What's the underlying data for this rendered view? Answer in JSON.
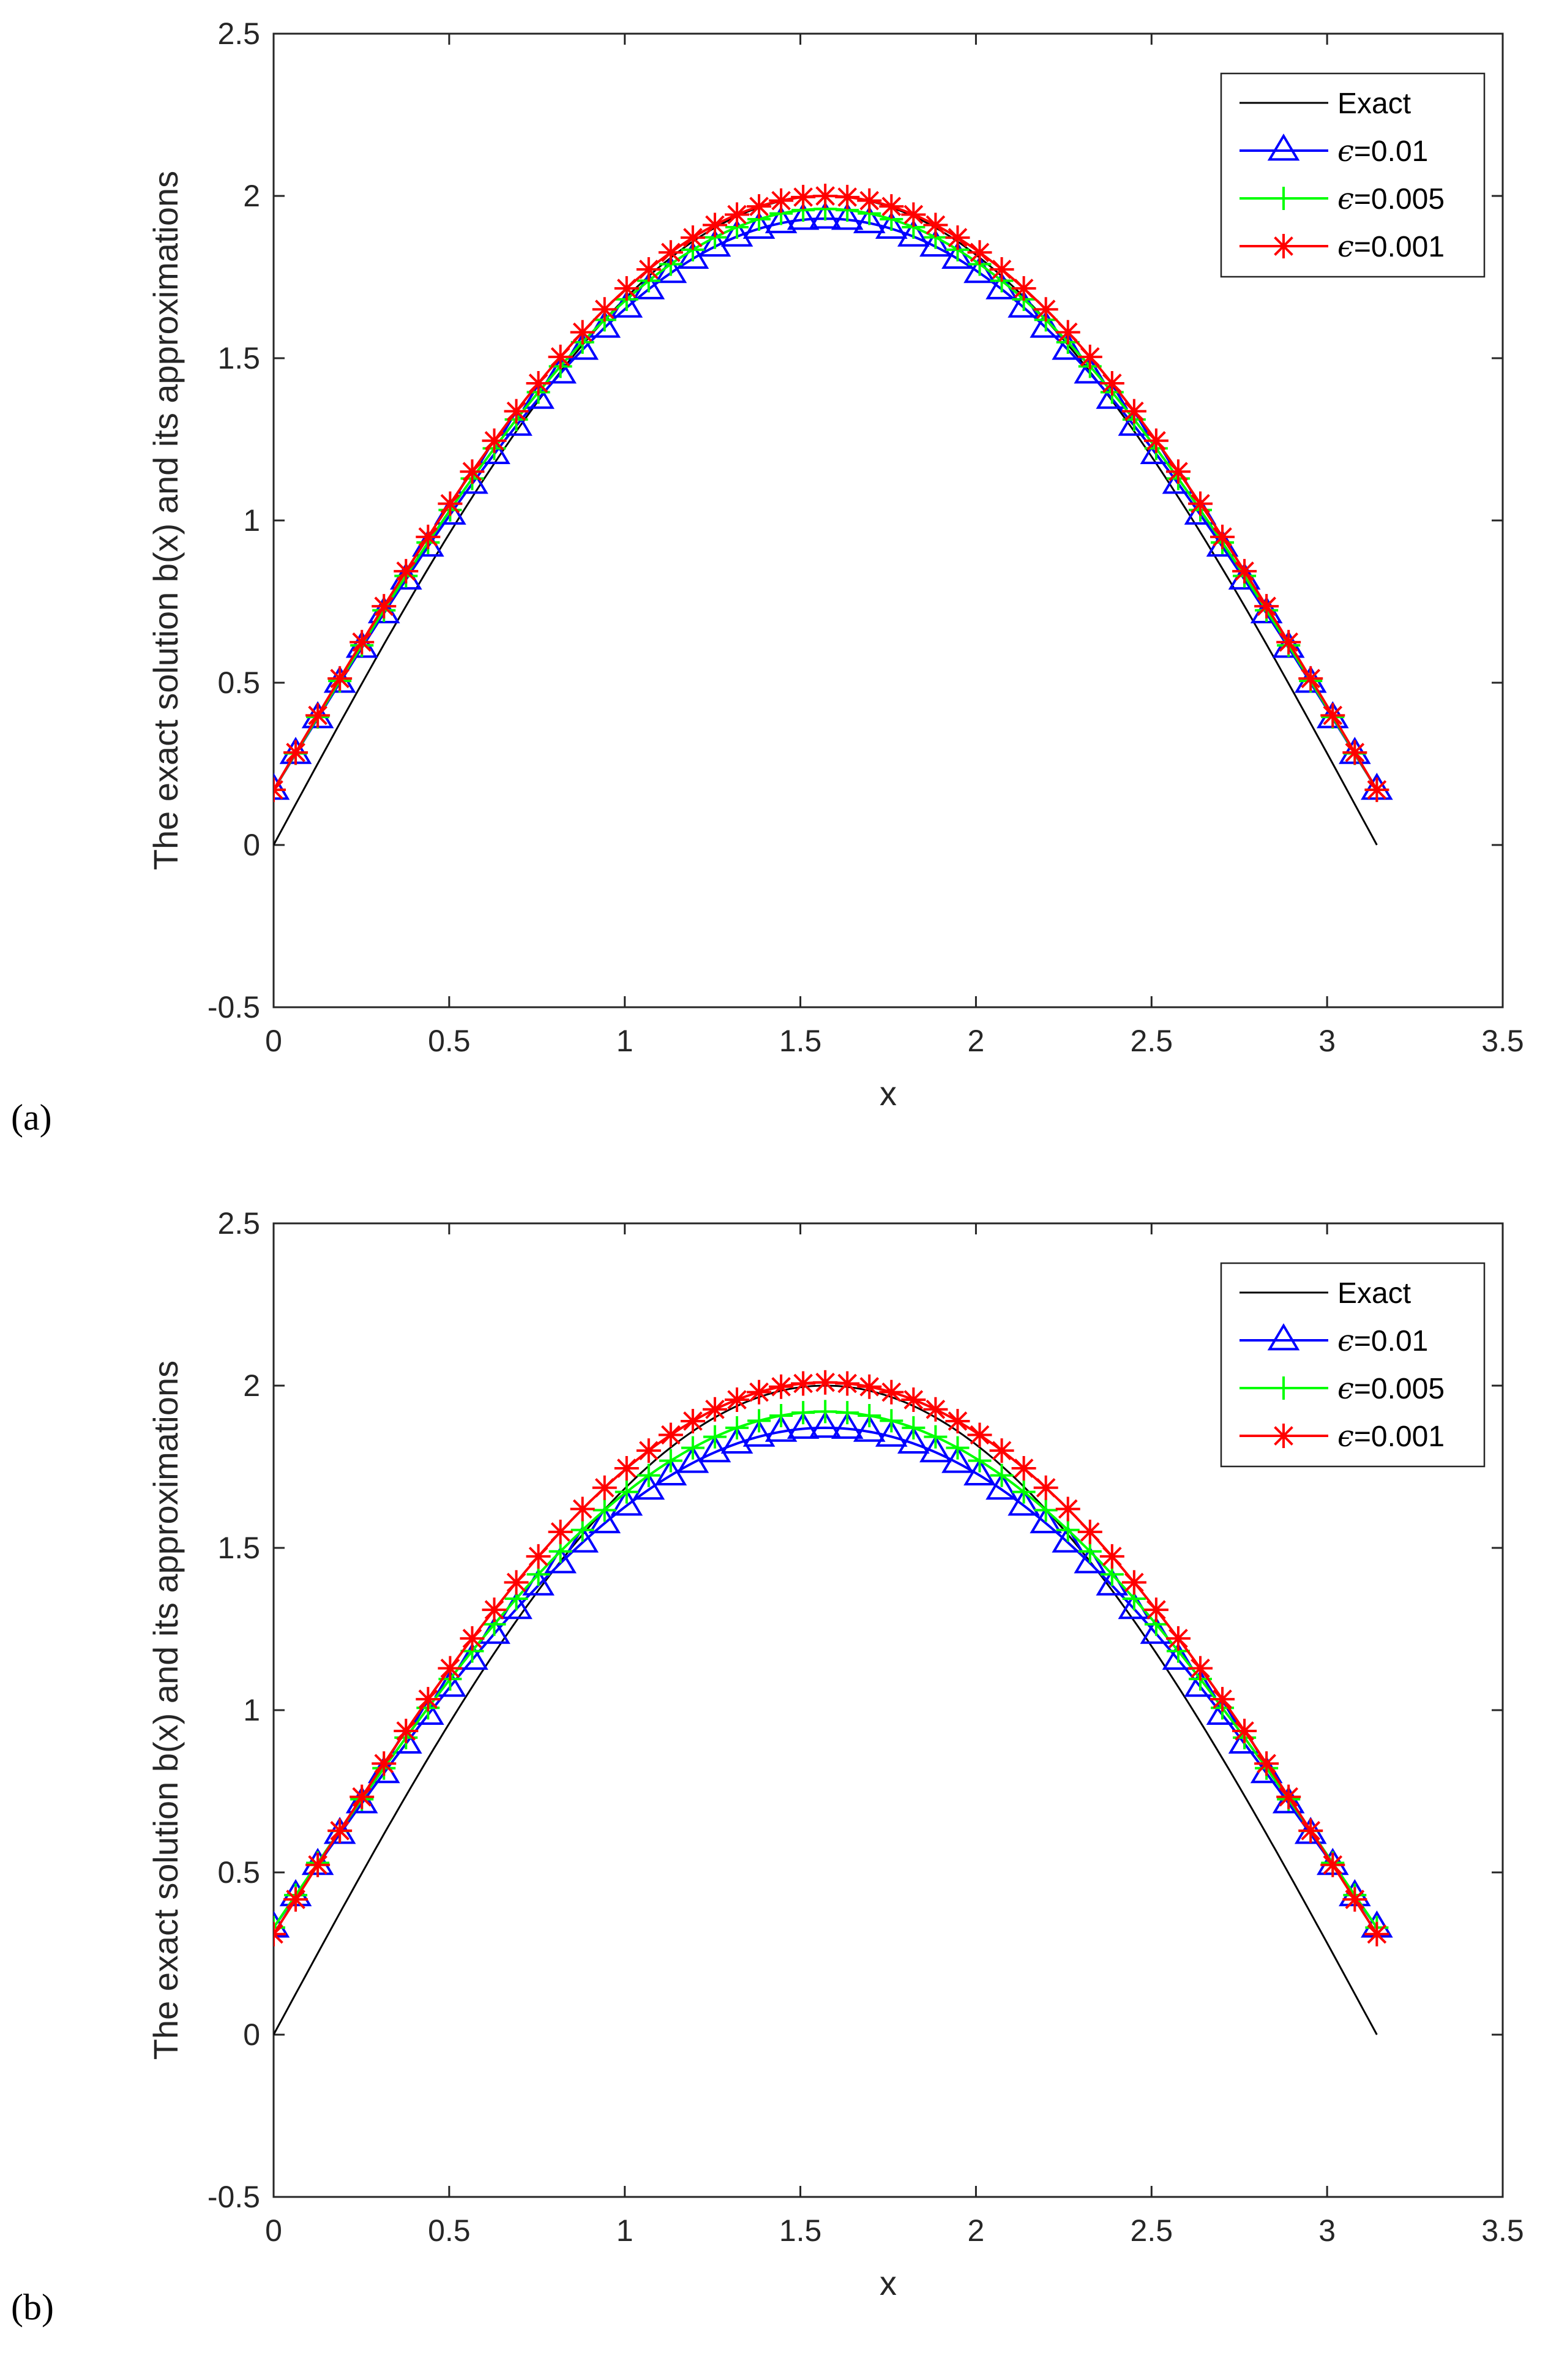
{
  "chart_data": [
    {
      "type": "line",
      "panel_label": "(a)",
      "xlabel": "x",
      "ylabel": "The exact solution b(x) and its approximations",
      "xlim": [
        0,
        3.5
      ],
      "ylim": [
        -0.5,
        2.5
      ],
      "xticks": [
        "0",
        "0.5",
        "1",
        "1.5",
        "2",
        "2.5",
        "3",
        "3.5"
      ],
      "yticks": [
        "-0.5",
        "0",
        "0.5",
        "1",
        "1.5",
        "2",
        "2.5"
      ],
      "legend_position": "top-right",
      "series": [
        {
          "name": "Exact",
          "color": "#000000",
          "marker": "none",
          "formula": "2sin(x)",
          "value_at_0": 0,
          "peak": 2.0
        },
        {
          "name": "=0.01",
          "symbol": "ϵ",
          "color": "#0000ff",
          "marker": "triangle",
          "value_at_0": 0.17,
          "peak": 1.93
        },
        {
          "name": "=0.005",
          "symbol": "ϵ",
          "color": "#00ff00",
          "marker": "plus",
          "value_at_0": 0.17,
          "peak": 1.96
        },
        {
          "name": "=0.001",
          "symbol": "ϵ",
          "color": "#ff0000",
          "marker": "asterisk",
          "value_at_0": 0.17,
          "peak": 2.0
        }
      ]
    },
    {
      "type": "line",
      "panel_label": "(b)",
      "xlabel": "x",
      "ylabel": "The exact solution b(x) and its approximations",
      "xlim": [
        0,
        3.5
      ],
      "ylim": [
        -0.5,
        2.5
      ],
      "xticks": [
        "0",
        "0.5",
        "1",
        "1.5",
        "2",
        "2.5",
        "3",
        "3.5"
      ],
      "yticks": [
        "-0.5",
        "0",
        "0.5",
        "1",
        "1.5",
        "2",
        "2.5"
      ],
      "legend_position": "top-right",
      "series": [
        {
          "name": "Exact",
          "color": "#000000",
          "marker": "none",
          "formula": "2sin(x)",
          "value_at_0": 0,
          "peak": 2.0
        },
        {
          "name": "=0.01",
          "symbol": "ϵ",
          "color": "#0000ff",
          "marker": "triangle",
          "value_at_0": 0.33,
          "peak": 1.87
        },
        {
          "name": "=0.005",
          "symbol": "ϵ",
          "color": "#00ff00",
          "marker": "plus",
          "value_at_0": 0.33,
          "peak": 1.92
        },
        {
          "name": "=0.001",
          "symbol": "ϵ",
          "color": "#ff0000",
          "marker": "asterisk",
          "value_at_0": 0.31,
          "peak": 2.01
        }
      ]
    }
  ]
}
